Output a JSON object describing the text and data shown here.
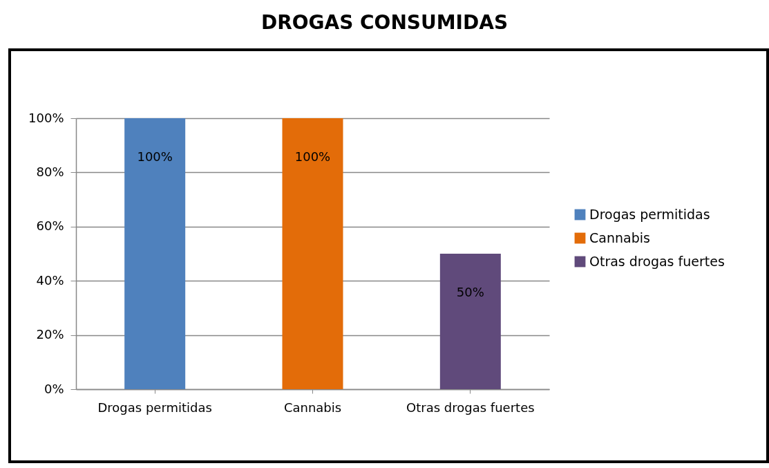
{
  "chart_data": {
    "type": "bar",
    "title": "DROGAS CONSUMIDAS",
    "categories": [
      "Drogas permitidas",
      "Cannabis",
      "Otras drogas fuertes"
    ],
    "series": [
      {
        "name": "Drogas permitidas",
        "color": "#4f81bd",
        "values": [
          100,
          null,
          null
        ],
        "value_labels": [
          "100%",
          null,
          null
        ]
      },
      {
        "name": "Cannabis",
        "color": "#e36c09",
        "values": [
          null,
          100,
          null
        ],
        "value_labels": [
          null,
          "100%",
          null
        ]
      },
      {
        "name": "Otras drogas fuertes",
        "color": "#604a7b",
        "values": [
          null,
          null,
          50
        ],
        "value_labels": [
          null,
          null,
          "50%"
        ]
      }
    ],
    "ylim": [
      0,
      100
    ],
    "yticks": [
      {
        "value": 0,
        "label": "0%"
      },
      {
        "value": 20,
        "label": "20%"
      },
      {
        "value": 40,
        "label": "40%"
      },
      {
        "value": 60,
        "label": "60%"
      },
      {
        "value": 80,
        "label": "80%"
      },
      {
        "value": 100,
        "label": "100%"
      }
    ],
    "grid": "y",
    "legend": "right"
  }
}
